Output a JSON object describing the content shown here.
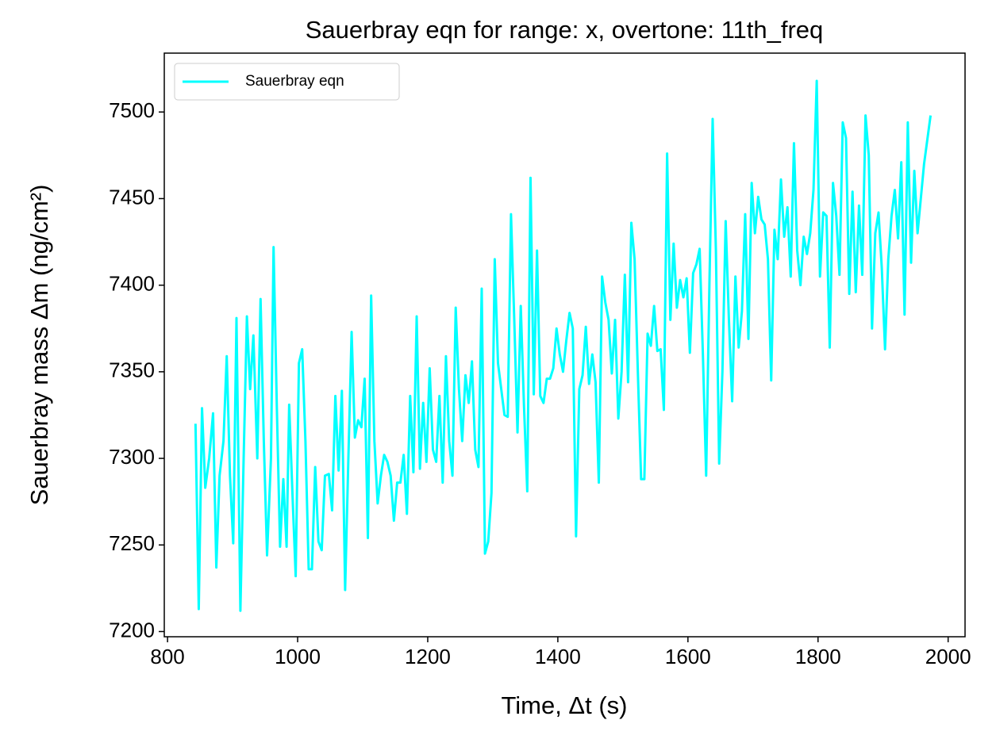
{
  "chart_data": {
    "type": "line",
    "title": "Sauerbray eqn for range: x, overtone: 11th_freq",
    "xlabel": "Time, Δt (s)",
    "ylabel": "Sauerbray mass Δm (ng/cm²)",
    "x": [
      843,
      848,
      853,
      858,
      864,
      870,
      875,
      880,
      886,
      891,
      896,
      901,
      906,
      912,
      917,
      922,
      927,
      932,
      938,
      943,
      948,
      953,
      959,
      963,
      968,
      973,
      978,
      983,
      987,
      992,
      997,
      1002,
      1007,
      1012,
      1017,
      1022,
      1027,
      1032,
      1037,
      1042,
      1048,
      1053,
      1058,
      1063,
      1068,
      1073,
      1078,
      1083,
      1088,
      1093,
      1098,
      1103,
      1108,
      1113,
      1118,
      1123,
      1128,
      1133,
      1138,
      1143,
      1148,
      1153,
      1158,
      1163,
      1168,
      1173,
      1178,
      1183,
      1188,
      1193,
      1198,
      1203,
      1208,
      1213,
      1218,
      1223,
      1228,
      1233,
      1238,
      1243,
      1248,
      1253,
      1258,
      1263,
      1268,
      1273,
      1278,
      1283,
      1288,
      1293,
      1298,
      1303,
      1308,
      1313,
      1318,
      1323,
      1328,
      1333,
      1338,
      1343,
      1348,
      1353,
      1358,
      1363,
      1368,
      1373,
      1378,
      1383,
      1388,
      1393,
      1398,
      1403,
      1408,
      1413,
      1418,
      1423,
      1428,
      1433,
      1438,
      1443,
      1448,
      1453,
      1458,
      1463,
      1468,
      1473,
      1478,
      1483,
      1488,
      1493,
      1498,
      1503,
      1508,
      1513,
      1518,
      1523,
      1528,
      1533,
      1538,
      1543,
      1548,
      1553,
      1558,
      1563,
      1568,
      1573,
      1578,
      1583,
      1588,
      1593,
      1598,
      1603,
      1608,
      1613,
      1618,
      1623,
      1628,
      1633,
      1638,
      1643,
      1648,
      1653,
      1658,
      1663,
      1668,
      1673,
      1678,
      1683,
      1688,
      1693,
      1698,
      1703,
      1708,
      1713,
      1718,
      1723,
      1728,
      1733,
      1738,
      1743,
      1748,
      1753,
      1758,
      1763,
      1768,
      1773,
      1778,
      1783,
      1788,
      1793,
      1798,
      1803,
      1808,
      1813,
      1818,
      1823,
      1828,
      1833,
      1838,
      1843,
      1848,
      1853,
      1858,
      1863,
      1868,
      1873,
      1878,
      1883,
      1888,
      1893,
      1898,
      1903,
      1908,
      1913,
      1918,
      1923,
      1928,
      1933,
      1938,
      1943,
      1948,
      1953,
      1963,
      1973
    ],
    "series": [
      {
        "name": "Sauerbray eqn",
        "color": "#00ffff",
        "values": [
          7320,
          7213,
          7329,
          7283,
          7300,
          7326,
          7237,
          7290,
          7310,
          7359,
          7290,
          7251,
          7381,
          7212,
          7300,
          7382,
          7340,
          7371,
          7300,
          7392,
          7310,
          7244,
          7300,
          7422,
          7330,
          7249,
          7288,
          7249,
          7331,
          7280,
          7232,
          7355,
          7363,
          7310,
          7236,
          7236,
          7295,
          7252,
          7247,
          7290,
          7291,
          7270,
          7336,
          7293,
          7339,
          7224,
          7300,
          7373,
          7312,
          7322,
          7318,
          7346,
          7254,
          7394,
          7310,
          7274,
          7290,
          7302,
          7298,
          7290,
          7264,
          7286,
          7286,
          7302,
          7268,
          7336,
          7292,
          7382,
          7294,
          7332,
          7298,
          7352,
          7305,
          7298,
          7336,
          7286,
          7359,
          7310,
          7290,
          7387,
          7340,
          7310,
          7348,
          7332,
          7356,
          7305,
          7295,
          7398,
          7245,
          7252,
          7280,
          7415,
          7355,
          7340,
          7325,
          7324,
          7441,
          7380,
          7315,
          7388,
          7330,
          7281,
          7462,
          7337,
          7420,
          7336,
          7332,
          7346,
          7346,
          7352,
          7375,
          7360,
          7350,
          7368,
          7384,
          7375,
          7255,
          7340,
          7348,
          7376,
          7343,
          7360,
          7344,
          7286,
          7405,
          7390,
          7380,
          7349,
          7380,
          7323,
          7350,
          7406,
          7344,
          7436,
          7415,
          7350,
          7288,
          7288,
          7372,
          7365,
          7388,
          7362,
          7363,
          7328,
          7476,
          7380,
          7424,
          7387,
          7403,
          7393,
          7404,
          7361,
          7407,
          7412,
          7421,
          7360,
          7290,
          7400,
          7496,
          7420,
          7297,
          7350,
          7437,
          7380,
          7333,
          7405,
          7364,
          7385,
          7441,
          7369,
          7459,
          7430,
          7451,
          7438,
          7435,
          7415,
          7345,
          7432,
          7415,
          7461,
          7428,
          7445,
          7405,
          7482,
          7420,
          7400,
          7428,
          7418,
          7430,
          7455,
          7518,
          7405,
          7442,
          7440,
          7364,
          7459,
          7440,
          7406,
          7494,
          7485,
          7395,
          7454,
          7396,
          7446,
          7406,
          7498,
          7475,
          7375,
          7430,
          7442,
          7410,
          7363,
          7415,
          7440,
          7455,
          7427,
          7471,
          7383,
          7494,
          7413,
          7466,
          7430,
          7470,
          7498
        ]
      }
    ],
    "xlim": [
      795,
      2026
    ],
    "xticks": [
      800,
      1000,
      1200,
      1400,
      1600,
      1800,
      2000
    ],
    "ylim": [
      7197,
      7534
    ],
    "yticks": [
      7200,
      7250,
      7300,
      7350,
      7400,
      7450,
      7500
    ],
    "legend": "upper left"
  }
}
